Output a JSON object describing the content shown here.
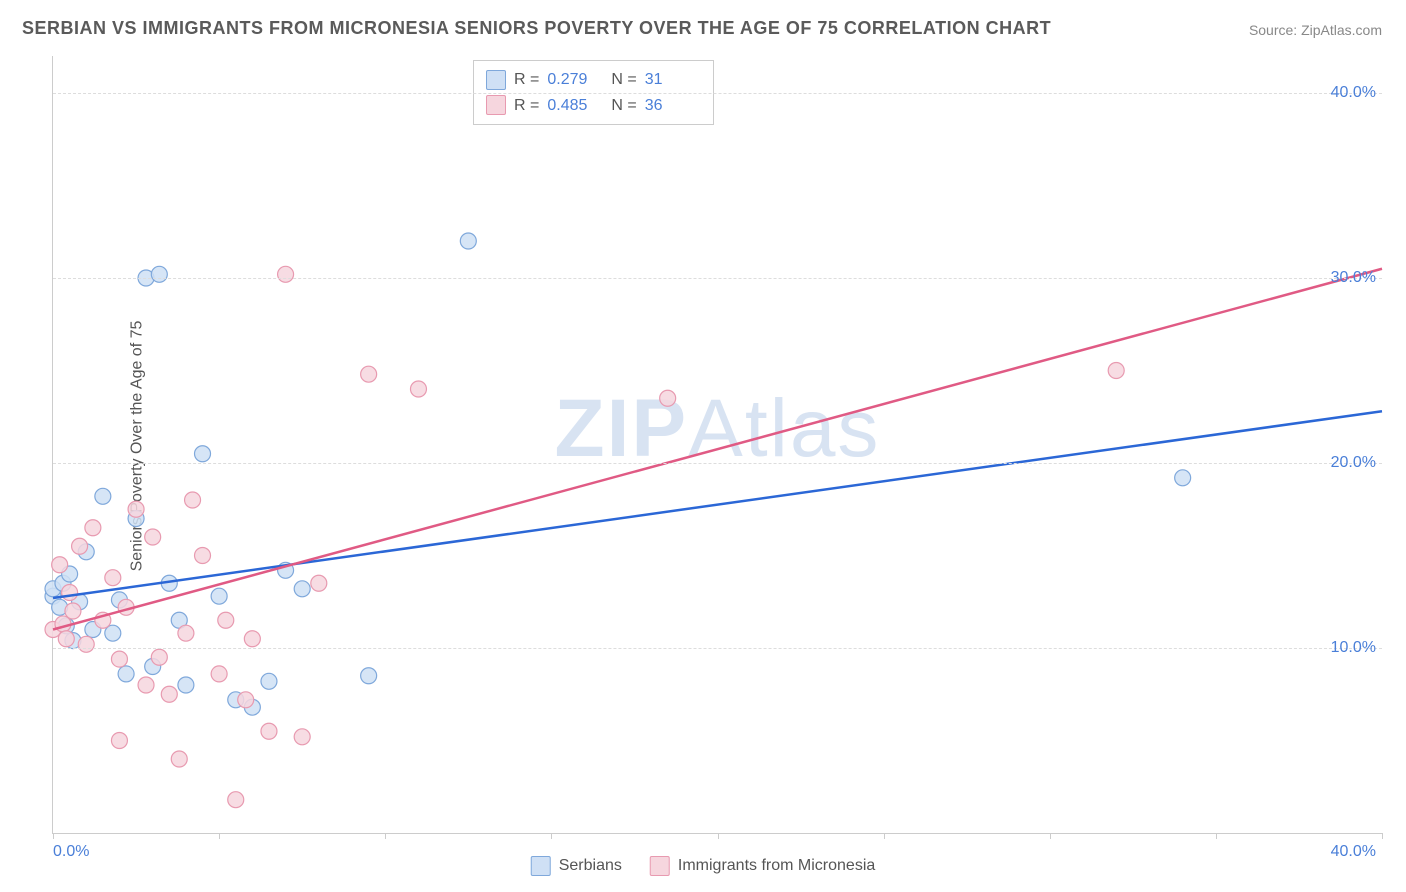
{
  "title": "SERBIAN VS IMMIGRANTS FROM MICRONESIA SENIORS POVERTY OVER THE AGE OF 75 CORRELATION CHART",
  "source": "Source: ZipAtlas.com",
  "watermark_bold": "ZIP",
  "watermark_light": "Atlas",
  "ylabel": "Seniors Poverty Over the Age of 75",
  "chart": {
    "type": "scatter",
    "xlim": [
      0,
      40
    ],
    "ylim": [
      0,
      42
    ],
    "xtick_label_min": "0.0%",
    "xtick_label_max": "40.0%",
    "ytick_positions": [
      10,
      20,
      30,
      40
    ],
    "ytick_labels": [
      "10.0%",
      "20.0%",
      "30.0%",
      "40.0%"
    ],
    "xtick_marks": [
      0,
      5,
      10,
      15,
      20,
      25,
      30,
      35,
      40
    ],
    "grid_color": "#dddddd",
    "background_color": "#ffffff",
    "marker_radius": 8,
    "marker_stroke_width": 1.2,
    "trend_line_width": 2.5,
    "series": [
      {
        "name": "Serbians",
        "fill": "#cfe0f5",
        "stroke": "#7fa8db",
        "line_color": "#2b67d6",
        "R": "0.279",
        "N": "31",
        "points": [
          [
            0.0,
            12.8
          ],
          [
            0.0,
            13.2
          ],
          [
            0.2,
            12.2
          ],
          [
            0.3,
            13.5
          ],
          [
            0.4,
            11.2
          ],
          [
            0.5,
            14.0
          ],
          [
            0.6,
            10.4
          ],
          [
            0.8,
            12.5
          ],
          [
            1.0,
            15.2
          ],
          [
            1.2,
            11.0
          ],
          [
            1.5,
            18.2
          ],
          [
            1.8,
            10.8
          ],
          [
            2.0,
            12.6
          ],
          [
            2.2,
            8.6
          ],
          [
            2.5,
            17.0
          ],
          [
            2.8,
            30.0
          ],
          [
            3.0,
            9.0
          ],
          [
            3.2,
            30.2
          ],
          [
            3.5,
            13.5
          ],
          [
            3.8,
            11.5
          ],
          [
            4.0,
            8.0
          ],
          [
            4.5,
            20.5
          ],
          [
            5.0,
            12.8
          ],
          [
            5.5,
            7.2
          ],
          [
            6.0,
            6.8
          ],
          [
            6.5,
            8.2
          ],
          [
            7.0,
            14.2
          ],
          [
            7.5,
            13.2
          ],
          [
            9.5,
            8.5
          ],
          [
            12.5,
            32.0
          ],
          [
            34.0,
            19.2
          ]
        ],
        "trend": {
          "x1": 0,
          "y1": 12.7,
          "x2": 40,
          "y2": 22.8
        }
      },
      {
        "name": "Immigrants from Micronesia",
        "fill": "#f6d6de",
        "stroke": "#e89ab0",
        "line_color": "#e05a84",
        "R": "0.485",
        "N": "36",
        "points": [
          [
            0.0,
            11.0
          ],
          [
            0.2,
            14.5
          ],
          [
            0.3,
            11.3
          ],
          [
            0.4,
            10.5
          ],
          [
            0.5,
            13.0
          ],
          [
            0.6,
            12.0
          ],
          [
            0.8,
            15.5
          ],
          [
            1.0,
            10.2
          ],
          [
            1.2,
            16.5
          ],
          [
            1.5,
            11.5
          ],
          [
            1.8,
            13.8
          ],
          [
            2.0,
            9.4
          ],
          [
            2.2,
            12.2
          ],
          [
            2.5,
            17.5
          ],
          [
            2.8,
            8.0
          ],
          [
            3.0,
            16.0
          ],
          [
            3.2,
            9.5
          ],
          [
            3.5,
            7.5
          ],
          [
            3.8,
            4.0
          ],
          [
            4.0,
            10.8
          ],
          [
            4.2,
            18.0
          ],
          [
            4.5,
            15.0
          ],
          [
            5.0,
            8.6
          ],
          [
            5.2,
            11.5
          ],
          [
            5.5,
            1.8
          ],
          [
            5.8,
            7.2
          ],
          [
            6.0,
            10.5
          ],
          [
            6.5,
            5.5
          ],
          [
            7.0,
            30.2
          ],
          [
            7.5,
            5.2
          ],
          [
            8.0,
            13.5
          ],
          [
            9.5,
            24.8
          ],
          [
            11.0,
            24.0
          ],
          [
            18.5,
            23.5
          ],
          [
            32.0,
            25.0
          ],
          [
            2.0,
            5.0
          ]
        ],
        "trend": {
          "x1": 0,
          "y1": 11.0,
          "x2": 40,
          "y2": 30.5
        }
      }
    ]
  },
  "legend_top_labels": {
    "R": "R =",
    "N": "N ="
  },
  "legend_bottom": [
    {
      "label": "Serbians",
      "fill": "#cfe0f5",
      "stroke": "#7fa8db"
    },
    {
      "label": "Immigrants from Micronesia",
      "fill": "#f6d6de",
      "stroke": "#e89ab0"
    }
  ]
}
